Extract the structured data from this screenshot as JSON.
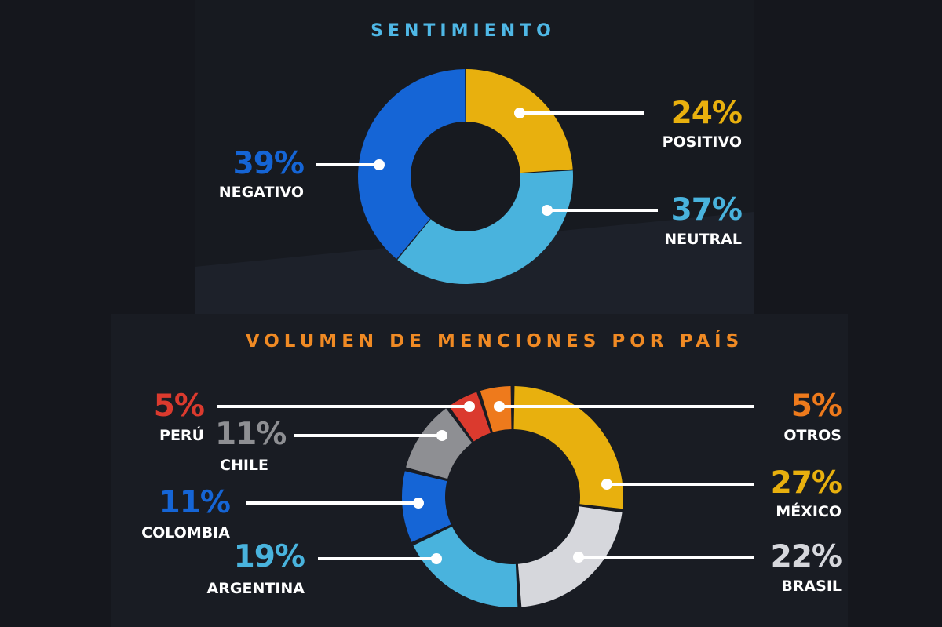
{
  "chart_data": [
    {
      "type": "pie",
      "title": "SENTIMIENTO",
      "title_color": "#4fb8e6",
      "categories": [
        "POSITIVO",
        "NEUTRAL",
        "NEGATIVO"
      ],
      "values": [
        24,
        37,
        39
      ],
      "labels": [
        "24%",
        "37%",
        "39%"
      ],
      "colors": [
        "#e8b00e",
        "#49b3dd",
        "#1565d6"
      ],
      "donut": true
    },
    {
      "type": "pie",
      "title": "VOLUMEN DE MENCIONES POR PAÍS",
      "title_color": "#f08a24",
      "categories": [
        "MÉXICO",
        "BRASIL",
        "ARGENTINA",
        "COLOMBIA",
        "CHILE",
        "PERÚ",
        "OTROS"
      ],
      "values": [
        27,
        22,
        19,
        11,
        11,
        5,
        5
      ],
      "labels": [
        "27%",
        "22%",
        "19%",
        "11%",
        "11%",
        "5%",
        "5%"
      ],
      "colors": [
        "#e8b00e",
        "#d6d7dc",
        "#49b3dd",
        "#1565d6",
        "#8e8f93",
        "#db3a2e",
        "#ee7a1c"
      ],
      "donut": true
    }
  ]
}
